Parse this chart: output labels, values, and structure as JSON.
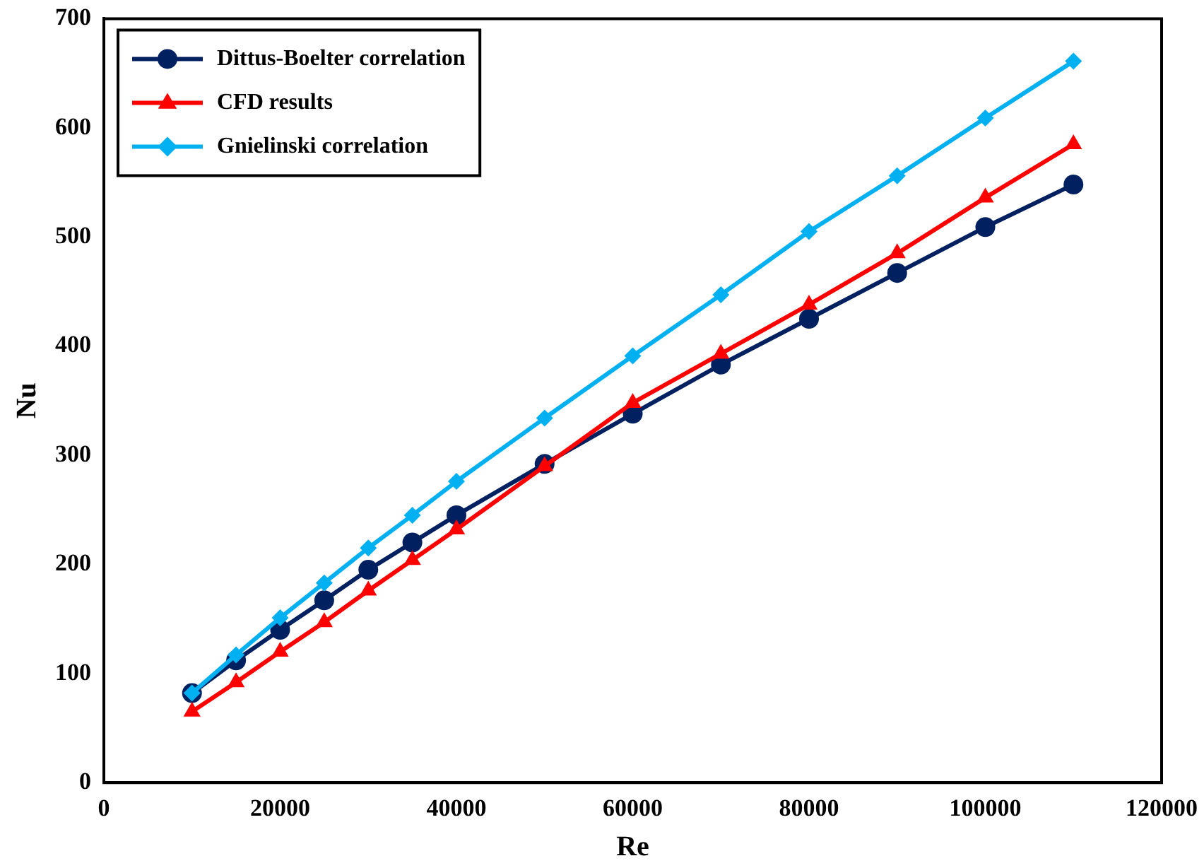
{
  "chart_data": {
    "type": "line",
    "xlabel": "Re",
    "ylabel": "Nu",
    "x": [
      10000,
      15000,
      20000,
      25000,
      30000,
      35000,
      40000,
      50000,
      60000,
      70000,
      80000,
      90000,
      100000,
      110000
    ],
    "series": [
      {
        "name": "Dittus-Boelter correlation",
        "color": "#002060",
        "marker": "circle",
        "values": [
          82,
          112,
          140,
          167,
          195,
          220,
          245,
          292,
          338,
          383,
          425,
          467,
          509,
          548
        ]
      },
      {
        "name": "CFD results",
        "color": "#ff0000",
        "marker": "triangle",
        "values": [
          65,
          92,
          120,
          147,
          176,
          204,
          232,
          290,
          348,
          393,
          438,
          485,
          536,
          585
        ]
      },
      {
        "name": "Gnielinski correlation",
        "color": "#00b0f0",
        "marker": "diamond",
        "values": [
          82,
          117,
          151,
          183,
          215,
          245,
          276,
          334,
          391,
          447,
          505,
          556,
          609,
          661
        ]
      }
    ],
    "xlim": [
      0,
      120000
    ],
    "xticks": [
      0,
      20000,
      40000,
      60000,
      80000,
      100000,
      120000
    ],
    "ylim": [
      0,
      700
    ],
    "yticks": [
      0,
      100,
      200,
      300,
      400,
      500,
      600,
      700
    ],
    "grid": false,
    "legend": "top left",
    "line_style": "solid"
  }
}
